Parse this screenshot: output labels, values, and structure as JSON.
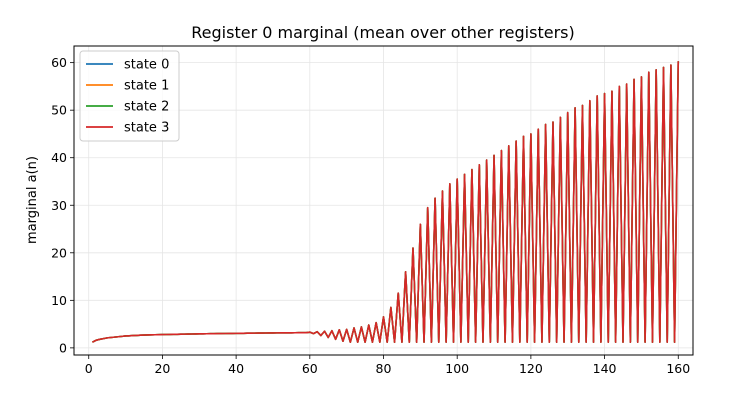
{
  "chart_data": {
    "type": "line",
    "title": "Register 0 marginal (mean over other registers)",
    "xlabel": "",
    "ylabel": "marginal a(n)",
    "xlim": [
      -4,
      164
    ],
    "ylim": [
      -1.5,
      63.5
    ],
    "xticks": [
      0,
      20,
      40,
      60,
      80,
      100,
      120,
      140,
      160
    ],
    "yticks": [
      0,
      10,
      20,
      30,
      40,
      50,
      60
    ],
    "grid": true,
    "legend_position": "upper-left",
    "description": "All four series coincide; y rises slowly from about 1.2 at n=1 to about 3.2 at n=60, then oscillates with period 2 between a low of about 1.2 and a high that grows to about 60 at n=160.",
    "x_range": [
      1,
      160
    ],
    "growth_phase": {
      "n": [
        1,
        2,
        3,
        5,
        10,
        15,
        20,
        30,
        40,
        50,
        60
      ],
      "value": [
        1.2,
        1.6,
        1.8,
        2.1,
        2.5,
        2.7,
        2.8,
        2.95,
        3.05,
        3.15,
        3.2
      ]
    },
    "oscillation_lows": 1.2,
    "oscillation_peaks": {
      "n": [
        60,
        62,
        64,
        66,
        68,
        70,
        72,
        74,
        76,
        78,
        80,
        82,
        84,
        86,
        88,
        90,
        92,
        94,
        96,
        98,
        100,
        102,
        104,
        106,
        108,
        110,
        112,
        114,
        116,
        118,
        120,
        122,
        124,
        126,
        128,
        130,
        132,
        134,
        136,
        138,
        140,
        142,
        144,
        146,
        148,
        150,
        152,
        154,
        156,
        158,
        160
      ],
      "value": [
        3.3,
        3.4,
        3.5,
        3.6,
        3.8,
        3.9,
        4.2,
        4.4,
        4.8,
        5.3,
        6.5,
        8.5,
        11.5,
        16,
        21,
        26,
        29.5,
        31.5,
        33,
        34.5,
        35.5,
        36.5,
        37.5,
        38.5,
        39.5,
        40.5,
        41.5,
        42.5,
        43.5,
        44.5,
        45,
        46,
        47,
        47.5,
        48.5,
        49.5,
        50.5,
        51,
        52,
        53,
        53.5,
        54,
        55,
        55.5,
        56.5,
        57,
        58,
        58.5,
        59,
        59.5,
        60.3
      ]
    },
    "series": [
      {
        "name": "state 0",
        "color": "#1f77b4"
      },
      {
        "name": "state 1",
        "color": "#ff7f0e"
      },
      {
        "name": "state 2",
        "color": "#2ca02c"
      },
      {
        "name": "state 3",
        "color": "#d62728"
      }
    ]
  }
}
